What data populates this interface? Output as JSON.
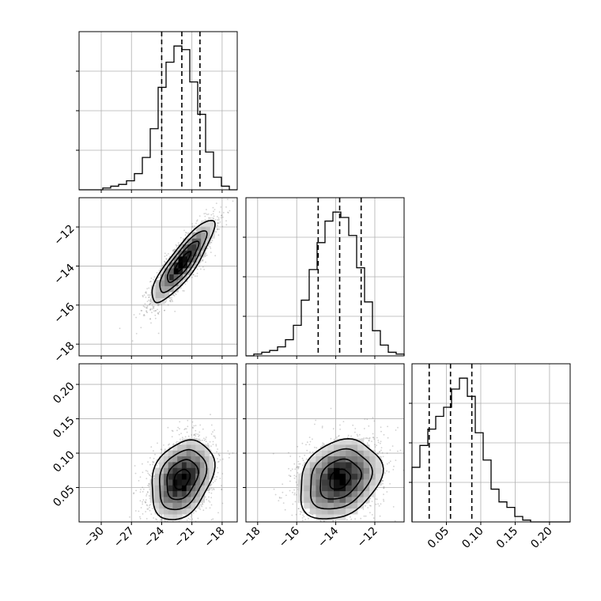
{
  "chart_data": {
    "type": "corner",
    "parameters": [
      {
        "id": "p0",
        "xlim": [
          -32.2,
          -16.5
        ],
        "ticks": [
          -30,
          -27,
          -24,
          -21,
          -18
        ],
        "tick_labels": [
          "−30",
          "−27",
          "−24",
          "−21",
          "−18"
        ],
        "quantiles": [
          -24.0,
          -22.0,
          -20.2
        ]
      },
      {
        "id": "p1",
        "xlim": [
          -18.6,
          -10.5
        ],
        "ticks": [
          -18,
          -16,
          -14,
          -12
        ],
        "tick_labels": [
          "−18",
          "−16",
          "−14",
          "−12"
        ],
        "quantiles": [
          -14.9,
          -13.8,
          -12.7
        ]
      },
      {
        "id": "p2",
        "xlim": [
          0.0,
          0.23
        ],
        "ticks": [
          0.05,
          0.1,
          0.15,
          0.2
        ],
        "tick_labels": [
          "0.05",
          "0.10",
          "0.15",
          "0.20"
        ],
        "quantiles": [
          0.025,
          0.056,
          0.087
        ]
      }
    ],
    "histograms": [
      {
        "param": "p0",
        "bin_edges": [
          -32.2,
          -31.415,
          -30.63,
          -29.845,
          -29.06,
          -28.275,
          -27.49,
          -26.705,
          -25.92,
          -25.135,
          -24.35,
          -23.565,
          -22.78,
          -21.995,
          -21.21,
          -20.425,
          -19.64,
          -18.855,
          -18.07,
          -17.285,
          -16.5
        ],
        "counts": [
          0,
          0,
          0,
          1,
          2,
          3,
          5,
          9,
          18,
          34,
          57,
          71,
          80,
          78,
          60,
          42,
          21,
          7,
          2,
          0
        ]
      },
      {
        "param": "p1",
        "bin_edges": [
          -18.6,
          -18.195,
          -17.79,
          -17.385,
          -16.98,
          -16.575,
          -16.17,
          -15.765,
          -15.36,
          -14.955,
          -14.55,
          -14.145,
          -13.74,
          -13.335,
          -12.93,
          -12.525,
          -12.12,
          -11.715,
          -11.31,
          -10.905,
          -10.5
        ],
        "counts": [
          0,
          1,
          2,
          3,
          5,
          9,
          17,
          31,
          48,
          63,
          75,
          80,
          77,
          67,
          49,
          30,
          14,
          6,
          2,
          1
        ]
      },
      {
        "param": "p2",
        "bin_edges": [
          0.0,
          0.0115,
          0.023,
          0.0345,
          0.046,
          0.0575,
          0.069,
          0.0805,
          0.092,
          0.1035,
          0.115,
          0.1265,
          0.138,
          0.1495,
          0.161,
          0.1725,
          0.184,
          0.1955,
          0.207,
          0.2185,
          0.23
        ],
        "counts": [
          30,
          42,
          51,
          58,
          63,
          73,
          79,
          69,
          49,
          34,
          18,
          11,
          8,
          3,
          1,
          0,
          0,
          0,
          0,
          0
        ]
      }
    ],
    "pairs": [
      {
        "x": "p0",
        "y": "p1",
        "ylim": [
          -18.6,
          -10.5
        ],
        "center": [
          -21.9,
          -13.8
        ],
        "sd": [
          1.55,
          1.05
        ],
        "corr": 0.86,
        "contour_levels_sigma": [
          0.5,
          1.0,
          1.5,
          2.0
        ]
      },
      {
        "x": "p0",
        "y": "p2",
        "ylim": [
          0.0,
          0.23
        ],
        "center": [
          -22.0,
          0.062
        ],
        "sd": [
          1.55,
          0.029
        ],
        "corr": 0.3,
        "contour_levels_sigma": [
          0.5,
          1.0,
          1.5,
          2.0
        ]
      },
      {
        "x": "p1",
        "y": "p2",
        "ylim": [
          0.0,
          0.23
        ],
        "center": [
          -13.8,
          0.062
        ],
        "sd": [
          1.05,
          0.029
        ],
        "corr": 0.25,
        "contour_levels_sigma": [
          0.5,
          1.0,
          1.5,
          2.0
        ]
      }
    ],
    "grid": true,
    "quantile_style": "dashed"
  }
}
